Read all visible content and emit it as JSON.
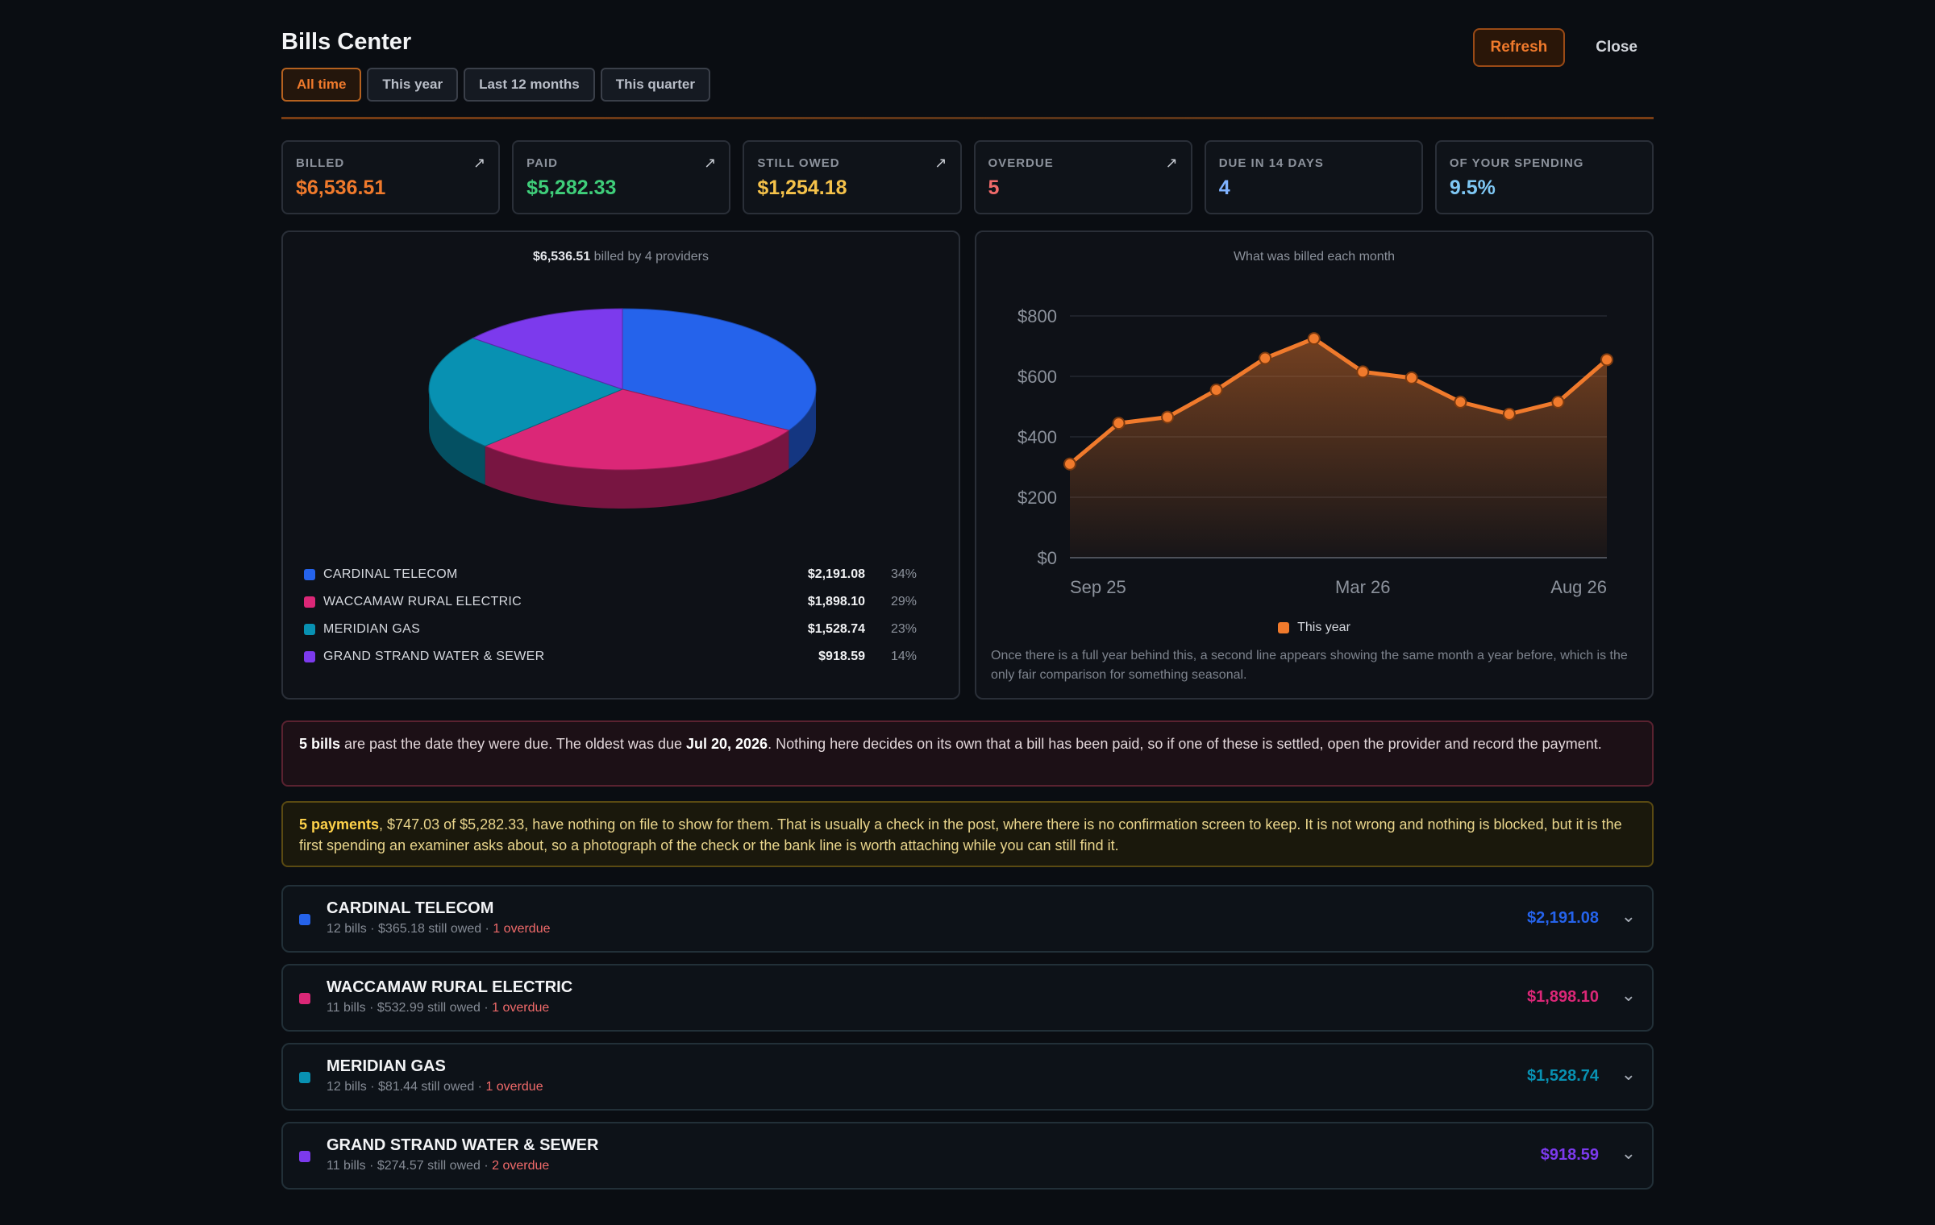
{
  "app": {
    "title": "Bills Center",
    "refresh_label": "Refresh",
    "close_label": "Close"
  },
  "periods": [
    {
      "label": "All time",
      "active": true
    },
    {
      "label": "This year",
      "active": false
    },
    {
      "label": "Last 12 months",
      "active": false
    },
    {
      "label": "This quarter",
      "active": false
    }
  ],
  "stats": [
    {
      "label": "BILLED",
      "value": "$6,536.51",
      "color": "#f07a2c",
      "arrow": "↗"
    },
    {
      "label": "PAID",
      "value": "$5,282.33",
      "color": "#3fce7a",
      "arrow": "↗"
    },
    {
      "label": "STILL OWED",
      "value": "$1,254.18",
      "color": "#f5c24a",
      "arrow": "↗"
    },
    {
      "label": "OVERDUE",
      "value": "5",
      "color": "#f06a6a",
      "arrow": "↗"
    },
    {
      "label": "DUE IN 14 DAYS",
      "value": "4",
      "color": "#7fb2ff",
      "arrow": ""
    },
    {
      "label": "OF YOUR SPENDING",
      "value": "9.5%",
      "color": "#7fc8f5",
      "arrow": ""
    }
  ],
  "pie": {
    "caption_total": "$6,536.51",
    "caption_rest": " billed by 4 providers"
  },
  "line": {
    "caption": "What was billed each month",
    "legend": "This year",
    "note": "Once there is a full year behind this, a second line appears showing the same month a year before, which is the only fair comparison for something seasonal."
  },
  "alerts": {
    "overdue_strong": "5 bills",
    "overdue_text1": " are past the date they were due. The oldest was due ",
    "overdue_date": "Jul 20, 2026",
    "overdue_text2": ". Nothing here decides on its own that a bill has been paid, so if one of these is settled, open the provider and record the payment.",
    "payments_strong": "5 payments",
    "payments_text": ", $747.03 of $5,282.33, have nothing on file to show for them. That is usually a check in the post, where there is no confirmation screen to keep. It is not wrong and nothing is blocked, but it is the first spending an examiner asks about, so a photograph of the check or the bank line is worth attaching while you can still find it."
  },
  "providers": [
    {
      "name": "CARDINAL TELECOM",
      "sub": "12 bills · $365.18 still owed · ",
      "overdue": "1 overdue",
      "amount": "$2,191.08",
      "color": "#2563eb",
      "pct": "34%"
    },
    {
      "name": "WACCAMAW RURAL ELECTRIC",
      "sub": "11 bills · $532.99 still owed · ",
      "overdue": "1 overdue",
      "amount": "$1,898.10",
      "color": "#db2777",
      "pct": "29%"
    },
    {
      "name": "MERIDIAN GAS",
      "sub": "12 bills · $81.44 still owed · ",
      "overdue": "1 overdue",
      "amount": "$1,528.74",
      "color": "#0891b2",
      "pct": "23%"
    },
    {
      "name": "GRAND STRAND WATER & SEWER",
      "sub": "11 bills · $274.57 still owed · ",
      "overdue": "2 overdue",
      "amount": "$918.59",
      "color": "#7c3aed",
      "pct": "14%"
    }
  ],
  "chart_data": [
    {
      "type": "pie",
      "title": "",
      "categories": [
        "CARDINAL TELECOM",
        "WACCAMAW RURAL ELECTRIC",
        "MERIDIAN GAS",
        "GRAND STRAND WATER & SEWER"
      ],
      "values": [
        2191.08,
        1898.1,
        1528.74,
        918.59
      ],
      "colors": [
        "#2563eb",
        "#db2777",
        "#0891b2",
        "#7c3aed"
      ],
      "style": "3d"
    },
    {
      "type": "area",
      "title": "What was billed each month",
      "x_ticks": [
        "Sep 25",
        "Mar 26",
        "Aug 26"
      ],
      "y_ticks": [
        "$0",
        "$200",
        "$400",
        "$600",
        "$800"
      ],
      "ylim": [
        0,
        800
      ],
      "series": [
        {
          "name": "This year",
          "color": "#f07a2c",
          "x": [
            "Sep 25",
            "Oct 25",
            "Nov 25",
            "Dec 25",
            "Jan 26",
            "Feb 26",
            "Mar 26",
            "Apr 26",
            "May 26",
            "Jun 26",
            "Jul 26",
            "Aug 26"
          ],
          "values": [
            310,
            445,
            465,
            555,
            660,
            725,
            615,
            595,
            515,
            475,
            515,
            655
          ]
        }
      ],
      "grid": true,
      "legend": "bottom"
    }
  ]
}
